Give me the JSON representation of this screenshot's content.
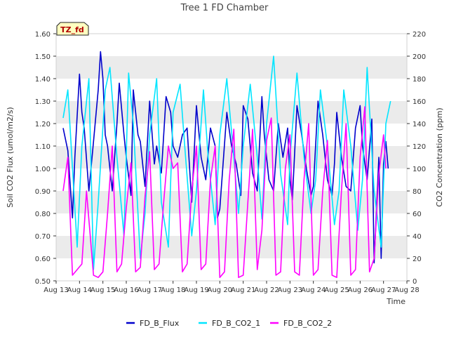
{
  "chart_data": {
    "type": "line",
    "title": "Tree 1 FD Chamber",
    "badge": "TZ_fd",
    "xlabel": "Time",
    "ylabel": "Soil CO2 Flux (umol/m2/s)",
    "y2label": "CO2 Concentration (ppm)",
    "x_ticks": [
      "Aug 13",
      "Aug 14",
      "Aug 15",
      "Aug 16",
      "Aug 17",
      "Aug 18",
      "Aug 19",
      "Aug 20",
      "Aug 21",
      "Aug 22",
      "Aug 23",
      "Aug 24",
      "Aug 25",
      "Aug 26",
      "Aug 27",
      "Aug 28"
    ],
    "xlim": [
      13,
      28
    ],
    "ylim": [
      0.5,
      1.6
    ],
    "y2lim": [
      0,
      220
    ],
    "y_ticks": [
      "0.50",
      "0.60",
      "0.70",
      "0.80",
      "0.90",
      "1.00",
      "1.10",
      "1.20",
      "1.30",
      "1.40",
      "1.50",
      "1.60"
    ],
    "y2_ticks": [
      "0",
      "20",
      "40",
      "60",
      "80",
      "100",
      "120",
      "140",
      "160",
      "180",
      "200",
      "220"
    ],
    "grid": "horizontal bands",
    "legend_position": "bottom",
    "colors": {
      "band": "#ebebeb",
      "flux": "#0000cc",
      "co2_1": "#00e5ff",
      "co2_2": "#ff00ff"
    },
    "series": [
      {
        "name": "FD_B_Flux",
        "axis": "left",
        "color": "#0000cc",
        "x": [
          13.3,
          13.5,
          13.7,
          13.8,
          14.0,
          14.1,
          14.2,
          14.4,
          14.6,
          14.8,
          14.9,
          15.0,
          15.1,
          15.2,
          15.4,
          15.6,
          15.7,
          15.9,
          16.0,
          16.2,
          16.3,
          16.5,
          16.6,
          16.8,
          17.0,
          17.2,
          17.3,
          17.5,
          17.7,
          17.9,
          18.0,
          18.2,
          18.4,
          18.6,
          18.8,
          19.0,
          19.2,
          19.4,
          19.6,
          19.8,
          19.9,
          20.0,
          20.3,
          20.5,
          20.7,
          20.9,
          21.0,
          21.2,
          21.4,
          21.6,
          21.8,
          21.9,
          22.1,
          22.3,
          22.5,
          22.7,
          22.9,
          23.0,
          23.1,
          23.3,
          23.5,
          23.7,
          23.9,
          24.0,
          24.2,
          24.4,
          24.6,
          24.8,
          24.9,
          25.0,
          25.2,
          25.4,
          25.6,
          25.8,
          26.0,
          26.1,
          26.3,
          26.5,
          26.6,
          26.8,
          26.9,
          27.0,
          27.1,
          27.2
        ],
        "y": [
          1.18,
          1.08,
          0.78,
          1.05,
          1.42,
          1.25,
          1.18,
          0.9,
          1.12,
          1.35,
          1.52,
          1.4,
          1.15,
          1.1,
          0.9,
          1.2,
          1.38,
          1.15,
          1.05,
          0.88,
          1.35,
          1.15,
          1.12,
          0.92,
          1.3,
          1.02,
          1.1,
          0.98,
          1.32,
          1.25,
          1.1,
          1.05,
          1.15,
          1.18,
          0.85,
          1.28,
          1.05,
          0.95,
          1.18,
          1.1,
          0.78,
          0.82,
          1.25,
          1.1,
          1.02,
          0.88,
          1.28,
          1.22,
          0.98,
          0.9,
          1.32,
          1.15,
          0.95,
          0.9,
          1.2,
          1.05,
          1.18,
          0.95,
          0.86,
          1.28,
          1.15,
          1.0,
          0.88,
          0.92,
          1.3,
          1.15,
          0.95,
          0.88,
          1.02,
          1.25,
          1.05,
          0.92,
          0.9,
          1.18,
          1.28,
          1.1,
          0.95,
          1.22,
          0.58,
          1.05,
          0.6,
          1.02,
          1.12,
          1.0
        ]
      },
      {
        "name": "FD_B_CO2_1",
        "axis": "right",
        "color": "#00e5ff",
        "x": [
          13.3,
          13.5,
          13.9,
          14.1,
          14.4,
          14.6,
          14.8,
          15.1,
          15.3,
          15.6,
          15.9,
          16.1,
          16.3,
          16.6,
          16.8,
          17.0,
          17.3,
          17.5,
          17.8,
          18.0,
          18.3,
          18.5,
          18.8,
          19.0,
          19.3,
          19.5,
          19.8,
          20.0,
          20.3,
          20.6,
          20.8,
          21.0,
          21.3,
          21.6,
          21.8,
          22.0,
          22.3,
          22.6,
          22.9,
          23.0,
          23.3,
          23.6,
          23.9,
          24.1,
          24.3,
          24.6,
          24.9,
          25.1,
          25.3,
          25.6,
          25.9,
          26.1,
          26.3,
          26.6,
          26.9,
          27.1,
          27.3
        ],
        "y": [
          145,
          170,
          30,
          120,
          180,
          10,
          70,
          170,
          190,
          110,
          40,
          185,
          140,
          20,
          60,
          130,
          180,
          70,
          30,
          150,
          175,
          120,
          40,
          80,
          170,
          110,
          50,
          130,
          180,
          110,
          60,
          120,
          175,
          110,
          55,
          140,
          200,
          95,
          50,
          110,
          185,
          110,
          60,
          90,
          170,
          120,
          50,
          80,
          170,
          120,
          45,
          90,
          190,
          80,
          30,
          140,
          160
        ]
      },
      {
        "name": "FD_B_CO2_2",
        "axis": "right",
        "color": "#ff00ff",
        "x": [
          13.3,
          13.5,
          13.7,
          13.9,
          14.1,
          14.3,
          14.6,
          14.8,
          15.0,
          15.2,
          15.4,
          15.6,
          15.8,
          16.0,
          16.2,
          16.4,
          16.6,
          16.8,
          17.0,
          17.2,
          17.4,
          17.6,
          17.8,
          18.0,
          18.2,
          18.4,
          18.6,
          18.8,
          19.0,
          19.2,
          19.4,
          19.6,
          19.8,
          20.0,
          20.2,
          20.4,
          20.6,
          20.8,
          21.0,
          21.2,
          21.4,
          21.6,
          21.8,
          22.0,
          22.2,
          22.4,
          22.6,
          22.8,
          23.0,
          23.2,
          23.4,
          23.6,
          23.8,
          24.0,
          24.2,
          24.4,
          24.6,
          24.8,
          25.0,
          25.2,
          25.4,
          25.6,
          25.8,
          26.0,
          26.2,
          26.4,
          26.6,
          26.8,
          27.0,
          27.1
        ],
        "y": [
          80,
          110,
          5,
          10,
          15,
          80,
          5,
          3,
          8,
          60,
          120,
          8,
          15,
          65,
          105,
          8,
          12,
          75,
          115,
          10,
          15,
          70,
          120,
          100,
          105,
          8,
          15,
          80,
          120,
          10,
          15,
          90,
          120,
          3,
          8,
          90,
          135,
          3,
          5,
          70,
          135,
          10,
          45,
          125,
          145,
          5,
          8,
          100,
          130,
          8,
          5,
          90,
          140,
          5,
          10,
          80,
          125,
          5,
          3,
          80,
          140,
          5,
          10,
          110,
          155,
          8,
          20,
          95,
          130,
          100
        ]
      }
    ]
  }
}
